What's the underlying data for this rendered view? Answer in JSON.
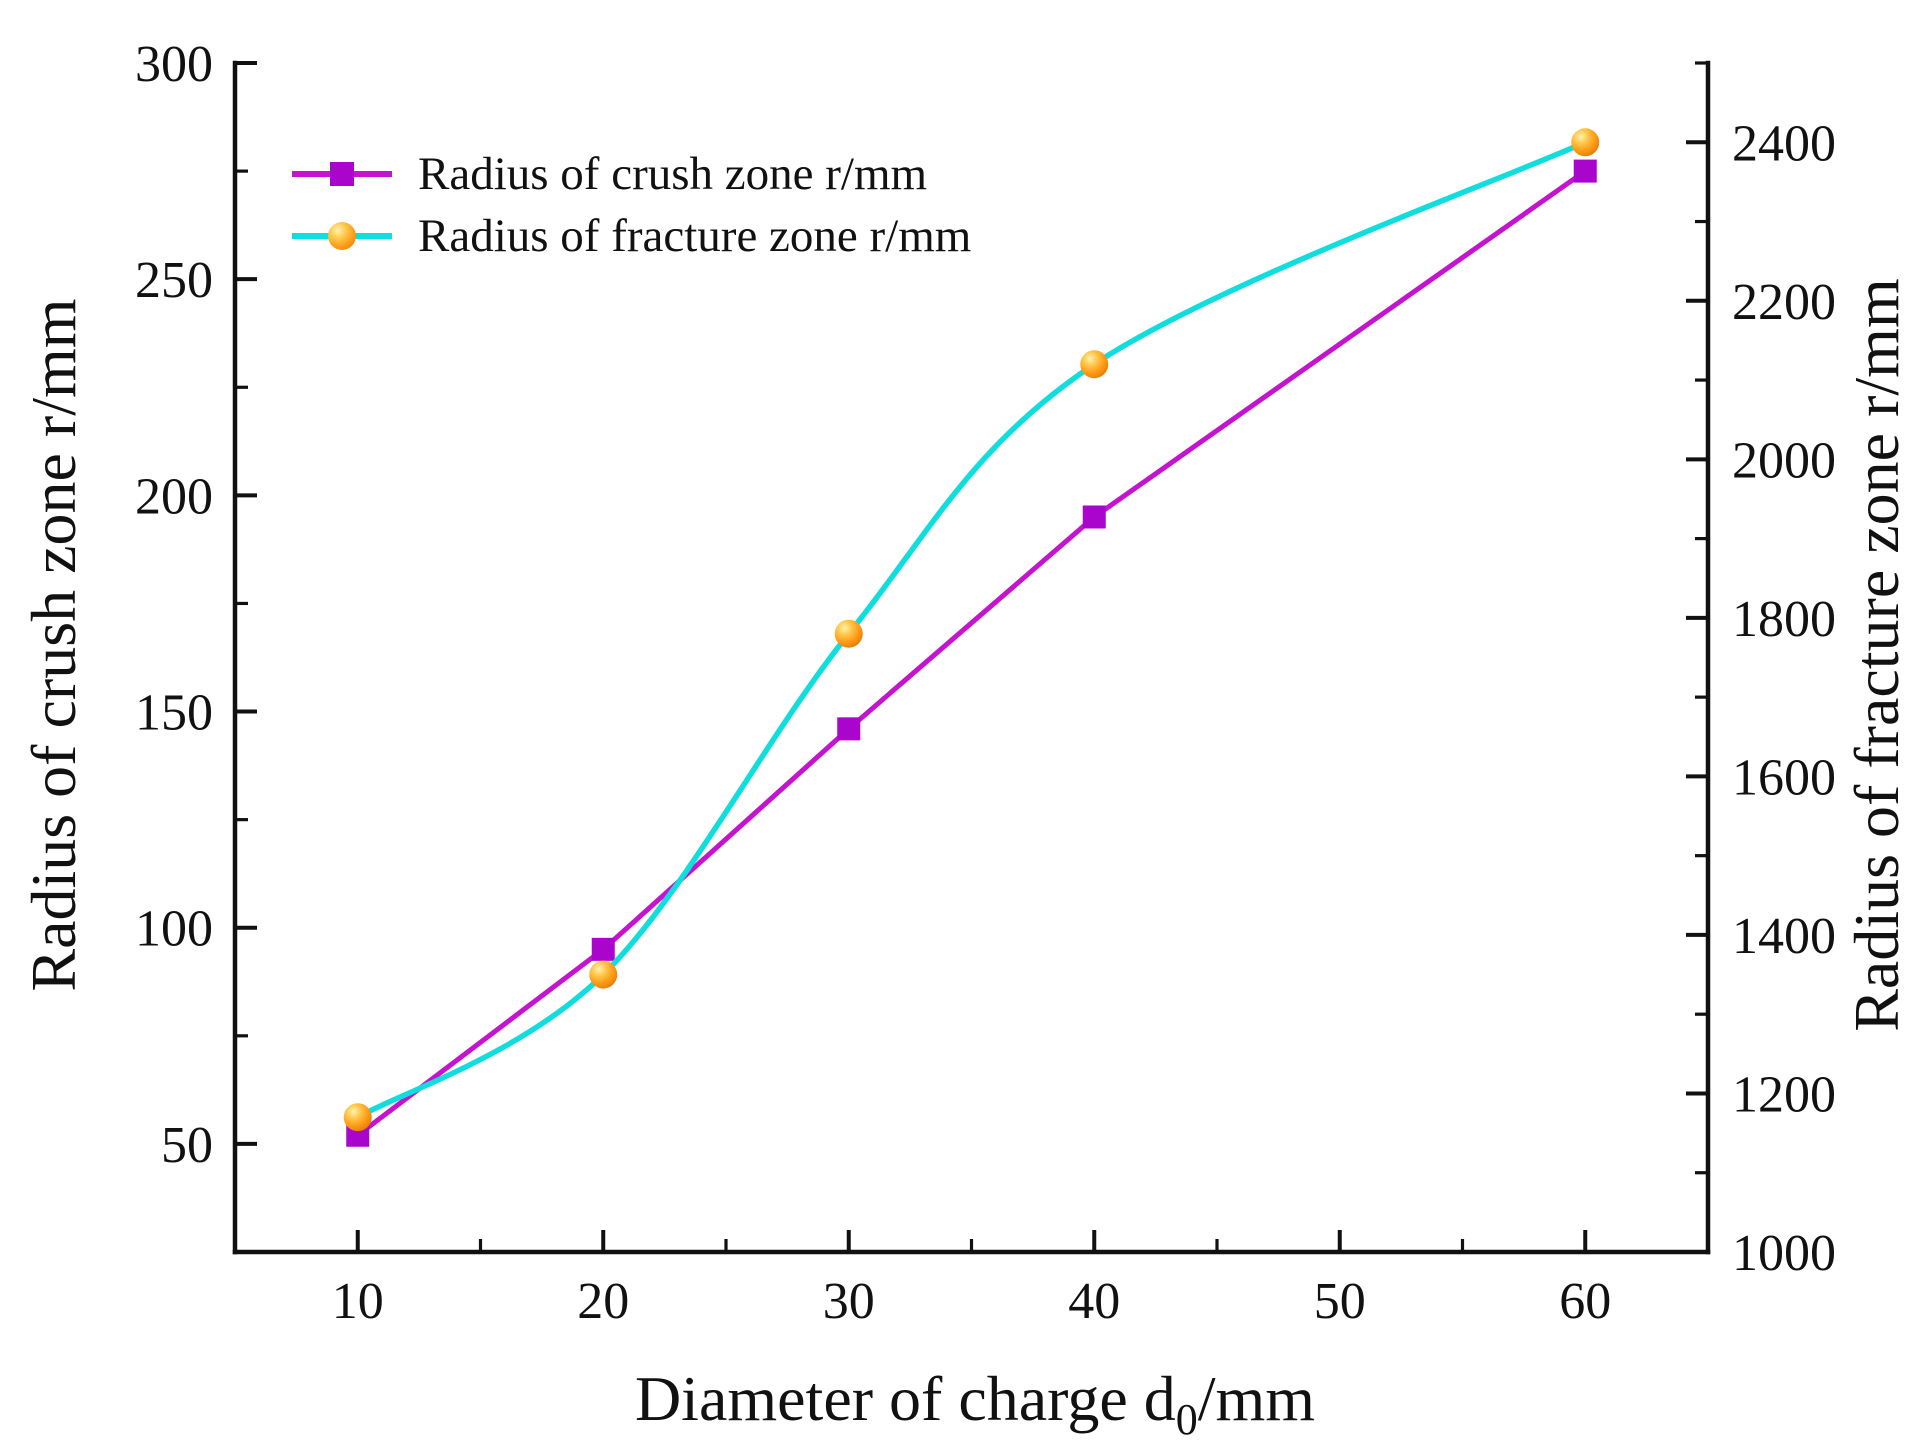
{
  "figure": {
    "background": "#ffffff",
    "axis_color": "#111111",
    "legend": {
      "position": "top-left",
      "items": [
        {
          "label": "Radius of crush zone r/mm",
          "marker": "magenta-square-on-line"
        },
        {
          "label": "Radius of fracture zone r/mm",
          "marker": "orange-ball-on-cyan-line"
        }
      ]
    }
  },
  "chart_data": {
    "type": "line",
    "title": "",
    "grid": false,
    "legend_position": "top-left",
    "x": [
      10,
      20,
      30,
      40,
      60
    ],
    "x_axis": {
      "label_parts": {
        "pre": "Diameter of charge d",
        "sub": "0",
        "post": "/mm"
      },
      "ticks": [
        10,
        20,
        30,
        40,
        50,
        60
      ],
      "minor_ticks": [
        15,
        25,
        35,
        45,
        55
      ],
      "range": [
        5,
        65
      ]
    },
    "left_axis": {
      "label": "Radius of crush zone r/mm",
      "ticks": [
        300,
        250,
        200,
        150,
        100,
        50
      ],
      "minor_ticks": [
        275,
        225,
        175,
        125,
        75
      ],
      "range": [
        25,
        300
      ]
    },
    "right_axis": {
      "label": "Radius of fracture zone r/mm",
      "ticks": [
        2400,
        2200,
        2000,
        1800,
        1600,
        1400,
        1200,
        1000
      ],
      "minor_ticks": [
        2500,
        2300,
        2100,
        1900,
        1700,
        1500,
        1300,
        1100
      ],
      "range": [
        1000,
        2500
      ]
    },
    "series": [
      {
        "name": "Radius of crush zone r/mm",
        "axis": "left",
        "values": [
          52,
          95,
          146,
          195,
          275
        ],
        "line_color": "#c513cf",
        "marker": "square",
        "marker_color": "#aa05cc",
        "line_style": "straight"
      },
      {
        "name": "Radius of fracture zone r/mm",
        "axis": "right",
        "values": [
          1170,
          1350,
          1780,
          2120,
          2400
        ],
        "line_color": "#10dede",
        "marker": "sphere",
        "marker_color": "#ff9d1a",
        "line_style": "smooth"
      }
    ]
  }
}
